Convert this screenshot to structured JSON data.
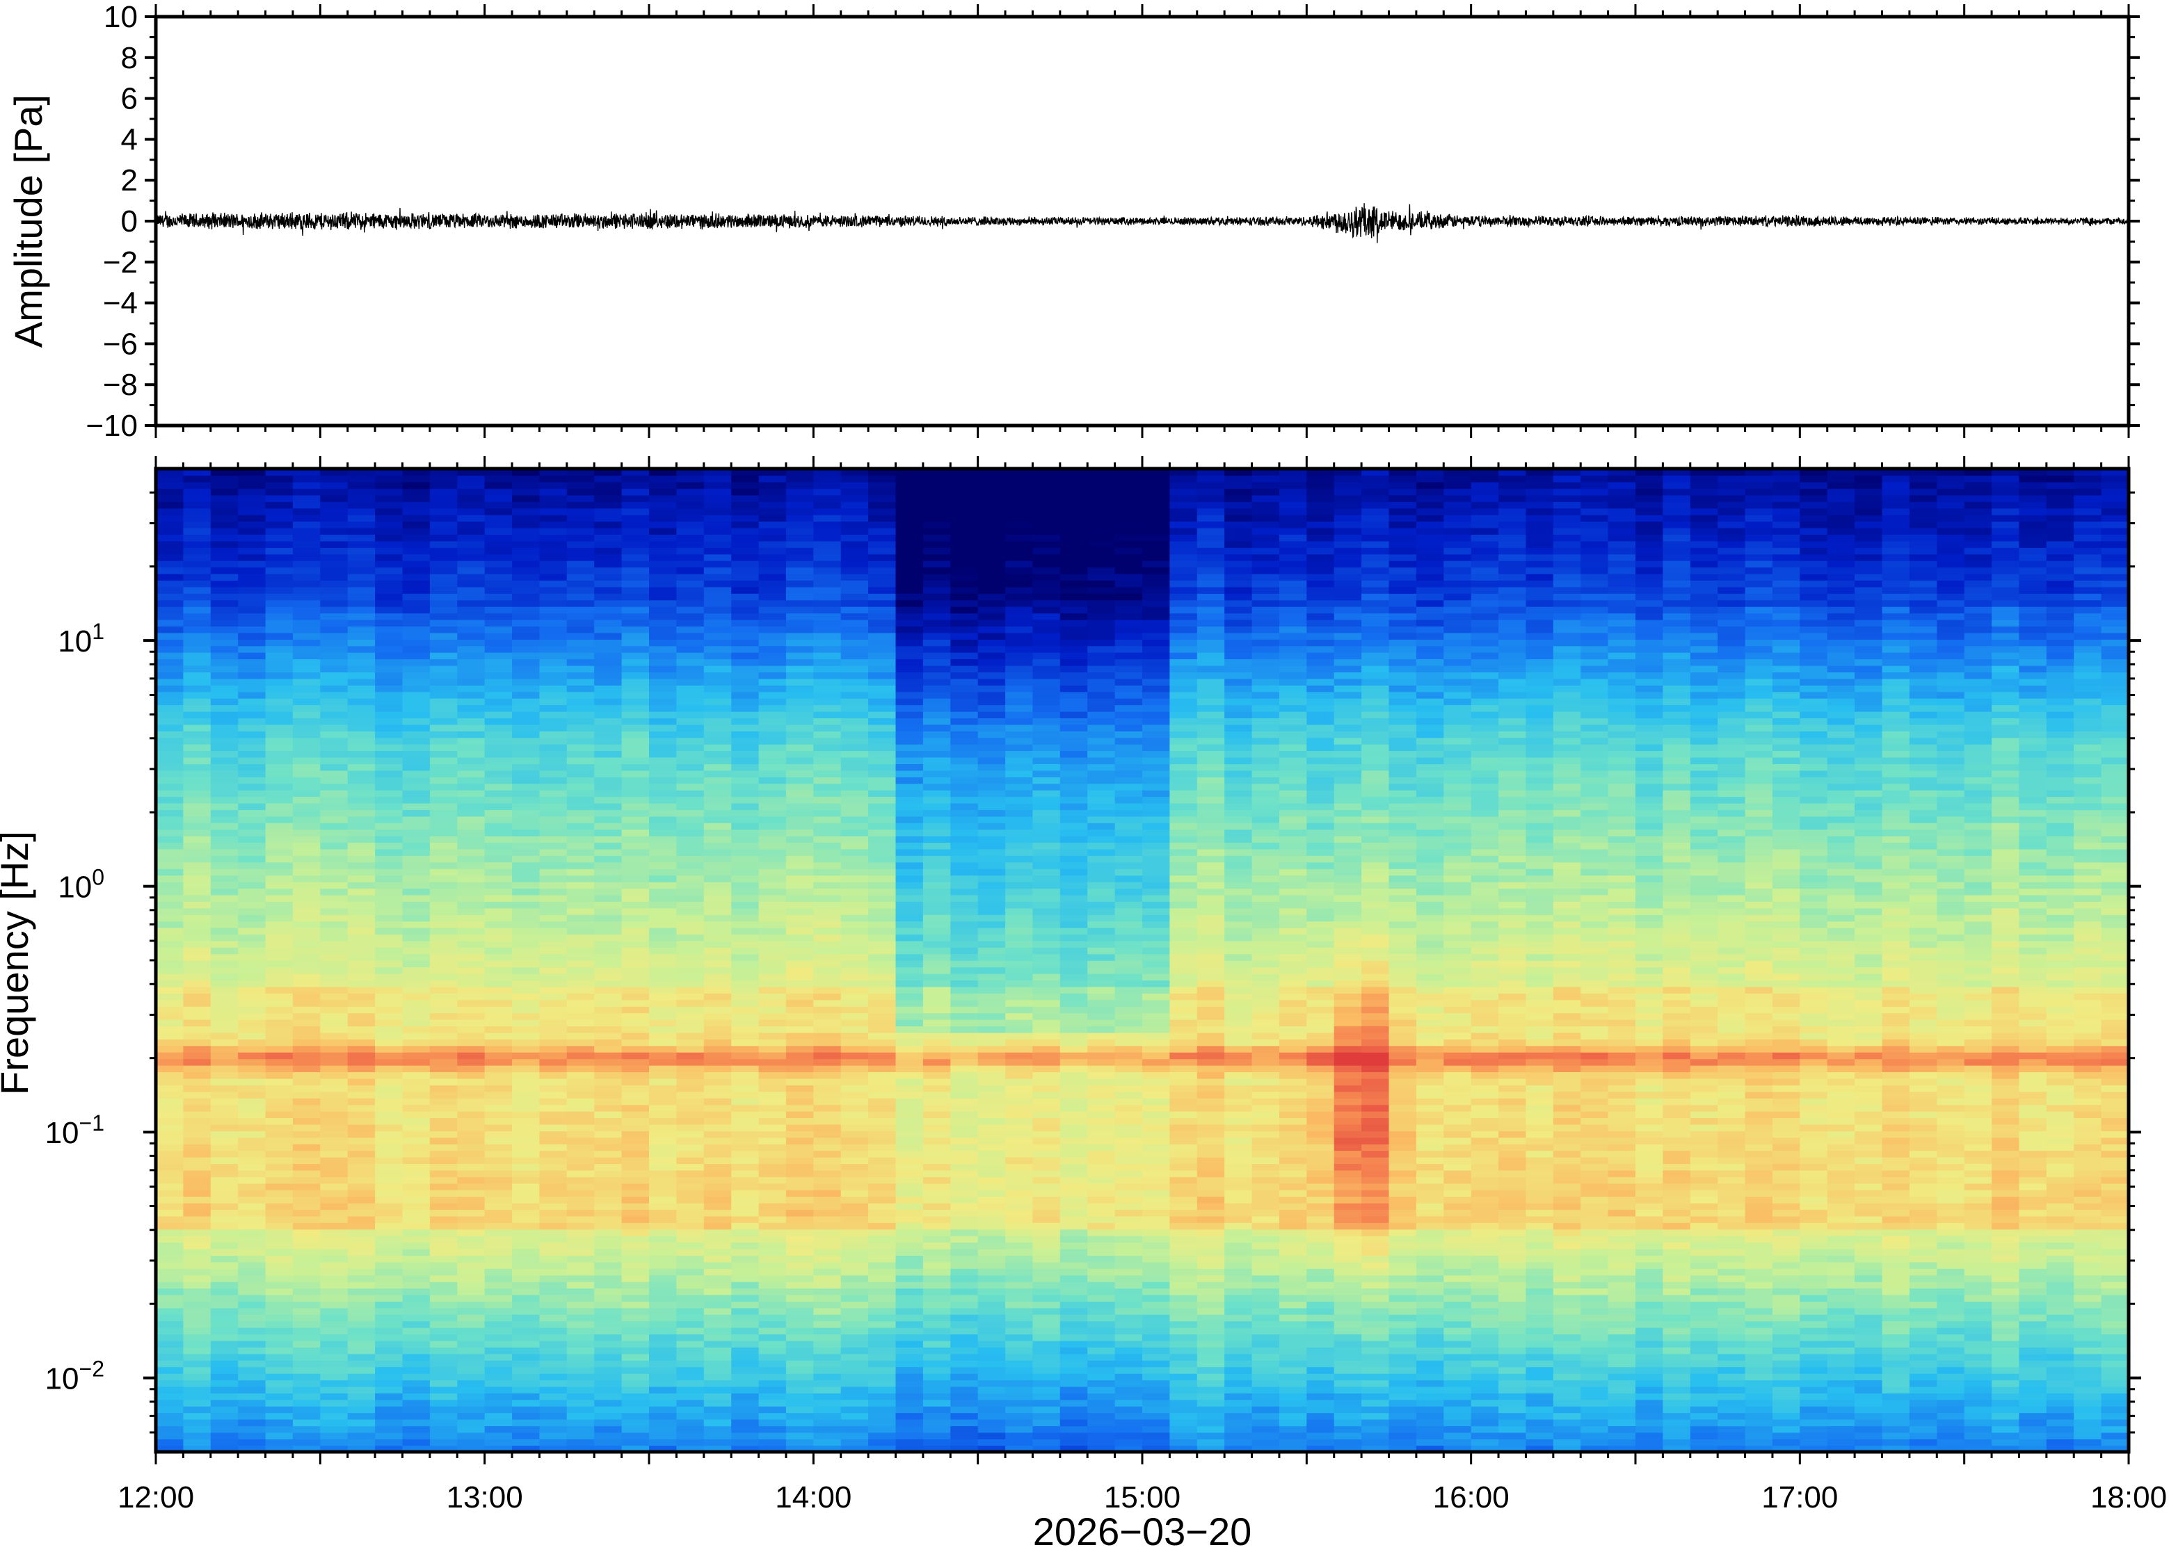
{
  "chart_data": [
    {
      "type": "line",
      "panel": "waveform",
      "ylabel": "Amplitude [Pa]",
      "ylim": [
        -10,
        10
      ],
      "yticks": [
        10,
        8,
        6,
        4,
        2,
        0,
        -2,
        -4,
        -6,
        -8,
        -10
      ],
      "ytick_labels": [
        "10",
        "8",
        "6",
        "4",
        "2",
        "0",
        "−2",
        "−4",
        "−6",
        "−8",
        "−10"
      ],
      "x_range": [
        "12:00",
        "18:00"
      ],
      "series": [
        {
          "color": "#000000",
          "baseline": 0,
          "envelope_times": [
            "12:00",
            "12:30",
            "13:00",
            "13:30",
            "14:00",
            "14:30",
            "15:00",
            "15:30",
            "15:35",
            "15:40",
            "15:45",
            "16:00",
            "16:30",
            "17:00",
            "17:30",
            "18:00"
          ],
          "envelope_amplitude": [
            0.4,
            0.5,
            0.4,
            0.45,
            0.35,
            0.25,
            0.2,
            0.25,
            0.6,
            1.1,
            0.6,
            0.3,
            0.25,
            0.3,
            0.2,
            0.2
          ]
        }
      ]
    },
    {
      "type": "heatmap",
      "panel": "spectrogram",
      "ylabel": "Frequency [Hz]",
      "xlabel": "2026−03−20",
      "y_scale": "log",
      "ylim": [
        0.005,
        50
      ],
      "yticks": [
        {
          "base": "10",
          "exp": "1"
        },
        {
          "base": "10",
          "exp": "0"
        },
        {
          "base": "10",
          "exp": "−1"
        },
        {
          "base": "10",
          "exp": "−2"
        }
      ],
      "xticks": [
        "12:00",
        "13:00",
        "14:00",
        "15:00",
        "16:00",
        "17:00",
        "18:00"
      ],
      "colormap": "jet",
      "features": {
        "microbarom_band_hz": 0.2,
        "event_time": "15:40",
        "quiet_period": [
          "14:15",
          "15:05"
        ]
      }
    }
  ]
}
